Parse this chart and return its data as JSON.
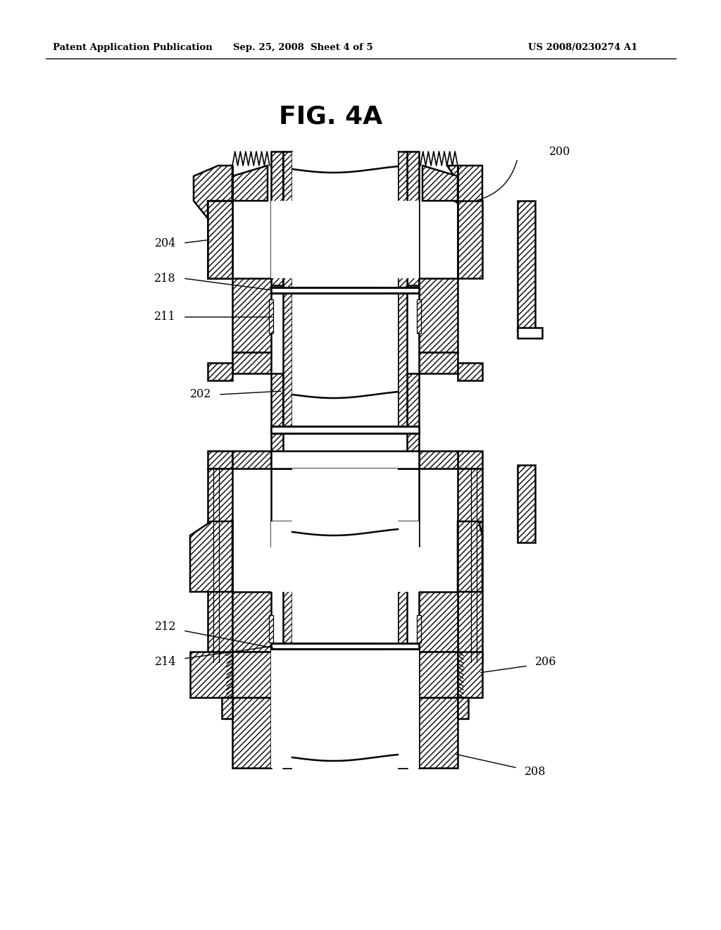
{
  "title": "FIG. 4A",
  "patent_header_left": "Patent Application Publication",
  "patent_header_mid": "Sep. 25, 2008  Sheet 4 of 5",
  "patent_header_right": "US 2008/0230274 A1",
  "bg_color": "#ffffff"
}
